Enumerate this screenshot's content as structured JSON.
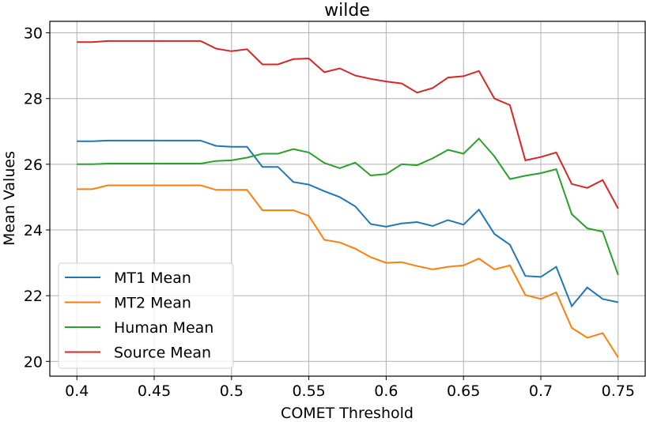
{
  "chart_data": {
    "type": "line",
    "title": "wilde",
    "xlabel": "COMET Threshold",
    "ylabel": "Mean Values",
    "xlim": [
      0.3825,
      0.7675
    ],
    "ylim": [
      19.55,
      30.35
    ],
    "xticks": [
      0.4,
      0.45,
      0.5,
      0.55,
      0.6,
      0.65,
      0.7,
      0.75
    ],
    "xtick_labels": [
      "0.4",
      "0.45",
      "0.5",
      "0.55",
      "0.6",
      "0.65",
      "0.7",
      "0.75"
    ],
    "yticks": [
      20,
      22,
      24,
      26,
      28,
      30
    ],
    "ytick_labels": [
      "20",
      "22",
      "24",
      "26",
      "28",
      "30"
    ],
    "grid": true,
    "legend_position": "lower-left",
    "x": [
      0.4,
      0.41,
      0.42,
      0.43,
      0.44,
      0.45,
      0.46,
      0.47,
      0.48,
      0.49,
      0.5,
      0.51,
      0.52,
      0.53,
      0.54,
      0.55,
      0.56,
      0.57,
      0.58,
      0.59,
      0.6,
      0.61,
      0.62,
      0.63,
      0.64,
      0.65,
      0.66,
      0.67,
      0.68,
      0.69,
      0.7,
      0.71,
      0.72,
      0.73,
      0.74,
      0.75
    ],
    "series": [
      {
        "name": "MT1 Mean",
        "color": "#1f77b4",
        "values": [
          26.7,
          26.7,
          26.72,
          26.72,
          26.72,
          26.72,
          26.72,
          26.72,
          26.72,
          26.56,
          26.53,
          26.53,
          25.92,
          25.92,
          25.46,
          25.38,
          25.18,
          25.0,
          24.72,
          24.18,
          24.1,
          24.2,
          24.24,
          24.12,
          24.3,
          24.16,
          24.62,
          23.88,
          23.55,
          22.6,
          22.57,
          22.88,
          21.68,
          22.25,
          21.9,
          21.8
        ]
      },
      {
        "name": "MT2 Mean",
        "color": "#ff7f0e",
        "values": [
          25.24,
          25.24,
          25.36,
          25.36,
          25.36,
          25.36,
          25.36,
          25.36,
          25.36,
          25.22,
          25.22,
          25.22,
          24.6,
          24.6,
          24.6,
          24.43,
          23.7,
          23.62,
          23.43,
          23.17,
          23.0,
          23.02,
          22.9,
          22.8,
          22.88,
          22.92,
          23.13,
          22.8,
          22.92,
          22.02,
          21.9,
          22.1,
          21.02,
          20.72,
          20.86,
          20.12
        ]
      },
      {
        "name": "Human Mean",
        "color": "#2ca02c",
        "values": [
          26.0,
          26.0,
          26.02,
          26.02,
          26.02,
          26.02,
          26.02,
          26.02,
          26.02,
          26.1,
          26.12,
          26.2,
          26.32,
          26.32,
          26.46,
          26.36,
          26.04,
          25.88,
          26.05,
          25.66,
          25.7,
          26.0,
          25.97,
          26.18,
          26.44,
          26.32,
          26.78,
          26.24,
          25.55,
          25.65,
          25.73,
          25.85,
          24.48,
          24.05,
          23.95,
          22.63
        ]
      },
      {
        "name": "Source Mean",
        "color": "#d62728",
        "values": [
          29.72,
          29.72,
          29.75,
          29.75,
          29.75,
          29.75,
          29.75,
          29.75,
          29.75,
          29.52,
          29.44,
          29.5,
          29.04,
          29.04,
          29.2,
          29.22,
          28.8,
          28.92,
          28.7,
          28.6,
          28.52,
          28.46,
          28.18,
          28.32,
          28.64,
          28.68,
          28.84,
          28.0,
          27.8,
          26.12,
          26.22,
          26.36,
          25.4,
          25.28,
          25.52,
          24.65
        ]
      }
    ]
  }
}
